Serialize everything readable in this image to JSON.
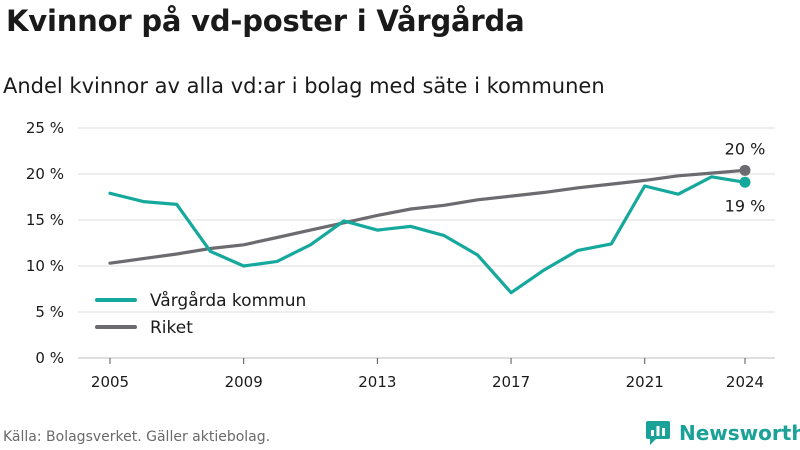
{
  "header": {
    "title": "Kvinnor på vd-poster i Vårgårda",
    "subtitle": "Andel kvinnor av alla vd:ar i bolag med säte i kommunen"
  },
  "footer": {
    "source": "Källa: Bolagsverket. Gäller aktiebolag.",
    "brand": "Newsworthy",
    "brand_icon": "newsworthy-logo-icon"
  },
  "colors": {
    "local": "#15a89c",
    "national": "#6b6b70",
    "grid": "#dcdcdc",
    "brand": "#1aa198"
  },
  "chart_data": {
    "type": "line",
    "x": [
      2005,
      2006,
      2007,
      2008,
      2009,
      2010,
      2011,
      2012,
      2013,
      2014,
      2015,
      2016,
      2017,
      2018,
      2019,
      2020,
      2021,
      2022,
      2023,
      2024
    ],
    "xticks": [
      2005,
      2009,
      2013,
      2017,
      2021,
      2024
    ],
    "xtick_labels": [
      "2005",
      "2009",
      "2013",
      "2017",
      "2021",
      "2024"
    ],
    "yticks": [
      0,
      5,
      10,
      15,
      20,
      25
    ],
    "ytick_labels": [
      "0 %",
      "5 %",
      "10 %",
      "15 %",
      "20 %",
      "25 %"
    ],
    "ylim": [
      0,
      25
    ],
    "xlim": [
      2004,
      2025
    ],
    "grid": "horizontal",
    "legend_position": "bottom-left",
    "series": [
      {
        "name": "Vårgårda kommun",
        "key": "local",
        "values": [
          17.9,
          17.0,
          16.7,
          11.6,
          10.0,
          10.5,
          12.3,
          14.9,
          13.9,
          14.3,
          13.3,
          11.2,
          7.1,
          9.6,
          11.7,
          12.4,
          18.7,
          17.8,
          19.7,
          19.1
        ],
        "end_label": "19 %"
      },
      {
        "name": "Riket",
        "key": "national",
        "values": [
          10.3,
          10.8,
          11.3,
          11.9,
          12.3,
          13.1,
          13.9,
          14.7,
          15.5,
          16.2,
          16.6,
          17.2,
          17.6,
          18.0,
          18.5,
          18.9,
          19.3,
          19.8,
          20.1,
          20.4
        ],
        "end_label": "20 %"
      }
    ]
  }
}
